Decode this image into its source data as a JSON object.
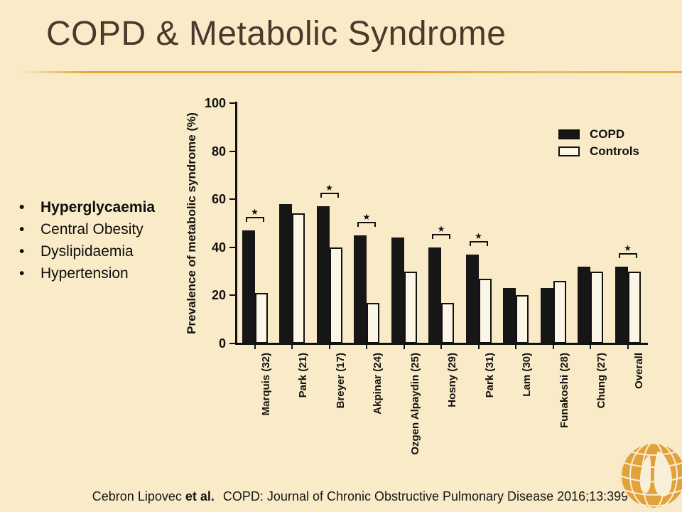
{
  "title": "COPD & Metabolic Syndrome",
  "bullets": [
    "Hyperglycaemia",
    "Central Obesity",
    "Dyslipidaemia",
    "Hypertension"
  ],
  "citation": {
    "authors": "Cebron Lipovec",
    "etal": "et al.",
    "rest": "COPD: Journal of Chronic Obstructive Pulmonary Disease 2016;13:399-406"
  },
  "logo": {
    "icon": "globe-lungs-logo",
    "globe_color": "#E2A23B",
    "lung_color": "#F9EFD6"
  },
  "colors": {
    "background": "#F9EBC7",
    "title": "#4B3A2C",
    "divider": "#E7A233",
    "axis": "#111111",
    "bar_copd": "#161616",
    "bar_controls_fill": "#FCF6E7"
  },
  "chart_data": {
    "type": "bar",
    "title": "",
    "xlabel": "",
    "ylabel": "Prevalence of metabolic syndrome (%)",
    "ylim": [
      0,
      100
    ],
    "yticks": [
      0,
      20,
      40,
      60,
      80,
      100
    ],
    "grid": false,
    "legend_position": "top-right",
    "categories": [
      "Marquis (32)",
      "Park (21)",
      "Breyer (17)",
      "Akpinar (24)",
      "Ozgen Alpaydin (25)",
      "Hosny (29)",
      "Park (31)",
      "Lam (30)",
      "Funakoshi (28)",
      "Chung (27)",
      "Overall"
    ],
    "series": [
      {
        "name": "COPD",
        "color": "#161616",
        "style": "solid",
        "values": [
          47,
          58,
          57,
          45,
          44,
          40,
          37,
          23,
          23,
          32,
          32
        ]
      },
      {
        "name": "Controls",
        "color": "#FCF6E7",
        "style": "outline",
        "values": [
          21,
          54,
          40,
          17,
          30,
          17,
          27,
          20,
          26,
          30,
          30
        ]
      }
    ],
    "significance": [
      true,
      false,
      true,
      true,
      false,
      true,
      true,
      false,
      false,
      false,
      true
    ],
    "significance_marker": "★"
  }
}
